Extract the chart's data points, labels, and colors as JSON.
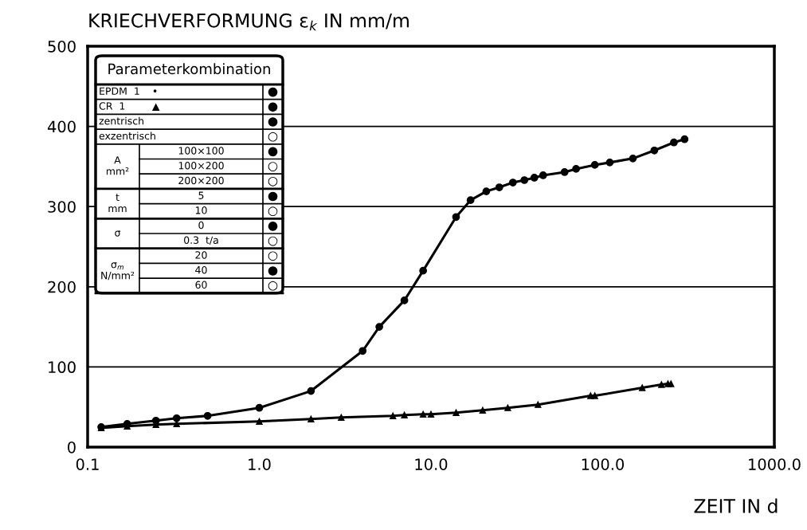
{
  "chart_data": {
    "type": "line",
    "title": "KRIECHVERFORMUNG ε$_{k}$ IN mm/m",
    "xlabel": "ZEIT IN d",
    "log": "x",
    "xlim": [
      0.1,
      1000
    ],
    "xticks": [
      0.1,
      {
        "value": 1,
        "label": "1.0"
      },
      {
        "value": 10,
        "label": "10.0"
      },
      {
        "value": 100,
        "label": "100.0"
      },
      {
        "value": 1000,
        "label": "1000.0"
      }
    ],
    "ylim": [
      0,
      500
    ],
    "yticks": [
      0,
      100,
      200,
      300,
      400,
      500
    ],
    "grid": "y",
    "line_style": "solid",
    "series": [
      {
        "color": "#000000",
        "marker": "circle",
        "x": [
          0.12,
          0.17,
          0.25,
          0.33,
          0.5,
          1,
          2,
          4,
          5,
          7,
          9,
          14,
          17,
          21,
          25,
          30,
          35,
          40,
          45,
          60,
          70,
          90,
          110,
          150,
          200,
          260,
          300
        ],
        "values": [
          25,
          29,
          33,
          36,
          39,
          49,
          70,
          120,
          150,
          183,
          220,
          287,
          308,
          319,
          324,
          330,
          333,
          336,
          339,
          343,
          347,
          352,
          355,
          360,
          370,
          380,
          384
        ]
      },
      {
        "color": "#000000",
        "marker": "triangle",
        "x": [
          0.12,
          0.17,
          0.25,
          0.33,
          1,
          2,
          3,
          6,
          7,
          9,
          10,
          14,
          20,
          28,
          42,
          85,
          90,
          170,
          220,
          240,
          250
        ],
        "values": [
          24,
          26,
          28,
          29,
          32,
          35,
          37,
          39,
          40,
          41,
          41,
          43,
          46,
          49,
          53,
          64,
          64,
          74,
          78,
          79,
          79
        ]
      }
    ],
    "annotations": [
      "Parameterkombination",
      "EPDM  1",
      "•",
      "●",
      "CR  1",
      "▲",
      "●",
      "zentrisch",
      "●",
      "exzentrisch",
      "○",
      "A\nmm²",
      "100×100",
      "●",
      "100×200",
      "○",
      "200×200",
      "○",
      "t\nmm",
      "5",
      "●",
      "10",
      "○",
      "σ",
      "0",
      "●",
      "0.3  t/a",
      "○",
      "σ$_{m}$\nN/mm²",
      "20",
      "○",
      "40",
      "●",
      "60",
      "○"
    ]
  }
}
